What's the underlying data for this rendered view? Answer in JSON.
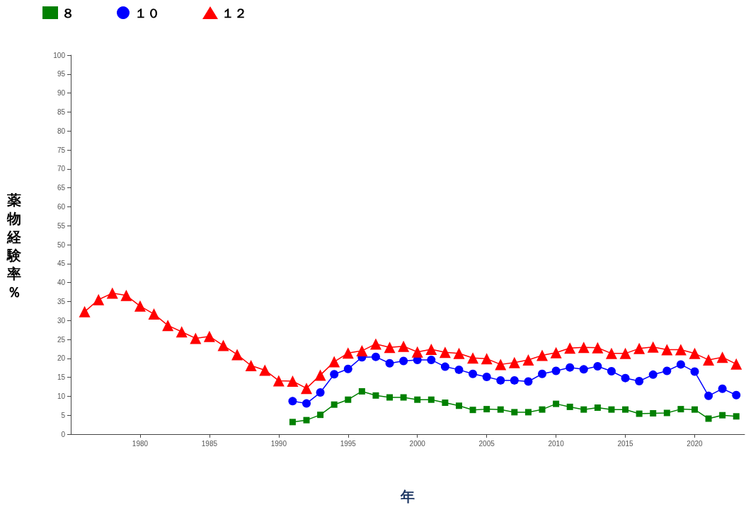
{
  "chart_data": {
    "type": "line",
    "xlabel": "年",
    "ylabel": "薬物経験率％",
    "xlim": [
      1975,
      2023.6
    ],
    "xticks": [
      1980,
      1985,
      1990,
      1995,
      2000,
      2005,
      2010,
      2015,
      2020
    ],
    "ylim": [
      0,
      100
    ],
    "yticks": [
      0,
      5,
      10,
      15,
      20,
      25,
      30,
      35,
      40,
      45,
      50,
      55,
      60,
      65,
      70,
      75,
      80,
      85,
      90,
      95,
      100
    ],
    "grid": false,
    "legend": "top left",
    "series": [
      {
        "name": "８",
        "color": "#008000",
        "marker": "square",
        "x": [
          1991,
          1992,
          1993,
          1994,
          1995,
          1996,
          1997,
          1998,
          1999,
          2000,
          2001,
          2002,
          2003,
          2004,
          2005,
          2006,
          2007,
          2008,
          2009,
          2010,
          2011,
          2012,
          2013,
          2014,
          2015,
          2016,
          2017,
          2018,
          2019,
          2020,
          2021,
          2022,
          2023
        ],
        "values": [
          3.2,
          3.7,
          5.1,
          7.8,
          9.1,
          11.3,
          10.2,
          9.7,
          9.7,
          9.1,
          9.1,
          8.3,
          7.5,
          6.4,
          6.6,
          6.5,
          5.8,
          5.8,
          6.5,
          8.0,
          7.2,
          6.5,
          7.0,
          6.5,
          6.5,
          5.4,
          5.5,
          5.6,
          6.6,
          6.5,
          4.1,
          5.0,
          4.7
        ]
      },
      {
        "name": "１０",
        "color": "#0000ff",
        "marker": "circle",
        "x": [
          1991,
          1992,
          1993,
          1994,
          1995,
          1996,
          1997,
          1998,
          1999,
          2000,
          2001,
          2002,
          2003,
          2004,
          2005,
          2006,
          2007,
          2008,
          2009,
          2010,
          2011,
          2012,
          2013,
          2014,
          2015,
          2016,
          2017,
          2018,
          2019,
          2020,
          2021,
          2022,
          2023
        ],
        "values": [
          8.7,
          8.1,
          11.0,
          15.8,
          17.2,
          20.3,
          20.4,
          18.7,
          19.3,
          19.6,
          19.6,
          17.8,
          17.0,
          15.9,
          15.1,
          14.2,
          14.2,
          13.9,
          15.9,
          16.7,
          17.6,
          17.1,
          17.9,
          16.6,
          14.8,
          14.0,
          15.7,
          16.7,
          18.4,
          16.5,
          10.1,
          12.0,
          10.3
        ]
      },
      {
        "name": "１２",
        "color": "#ff0000",
        "marker": "triangle",
        "x": [
          1976,
          1977,
          1978,
          1979,
          1980,
          1981,
          1982,
          1983,
          1984,
          1985,
          1986,
          1987,
          1988,
          1989,
          1990,
          1991,
          1992,
          1993,
          1994,
          1995,
          1996,
          1997,
          1998,
          1999,
          2000,
          2001,
          2002,
          2003,
          2004,
          2005,
          2006,
          2007,
          2008,
          2009,
          2010,
          2011,
          2012,
          2013,
          2014,
          2015,
          2016,
          2017,
          2018,
          2019,
          2020,
          2021,
          2022,
          2023
        ],
        "values": [
          32.3,
          35.5,
          37.2,
          36.6,
          33.8,
          31.7,
          28.7,
          27.0,
          25.3,
          25.8,
          23.4,
          21.0,
          18.1,
          16.9,
          14.1,
          14.0,
          12.1,
          15.6,
          19.1,
          21.4,
          22.0,
          23.8,
          22.9,
          23.2,
          21.7,
          22.4,
          21.6,
          21.3,
          20.1,
          19.9,
          18.4,
          18.9,
          19.6,
          20.8,
          21.5,
          22.7,
          22.9,
          22.8,
          21.3,
          21.3,
          22.6,
          23.0,
          22.3,
          22.3,
          21.3,
          19.6,
          20.3,
          18.5
        ]
      }
    ]
  }
}
